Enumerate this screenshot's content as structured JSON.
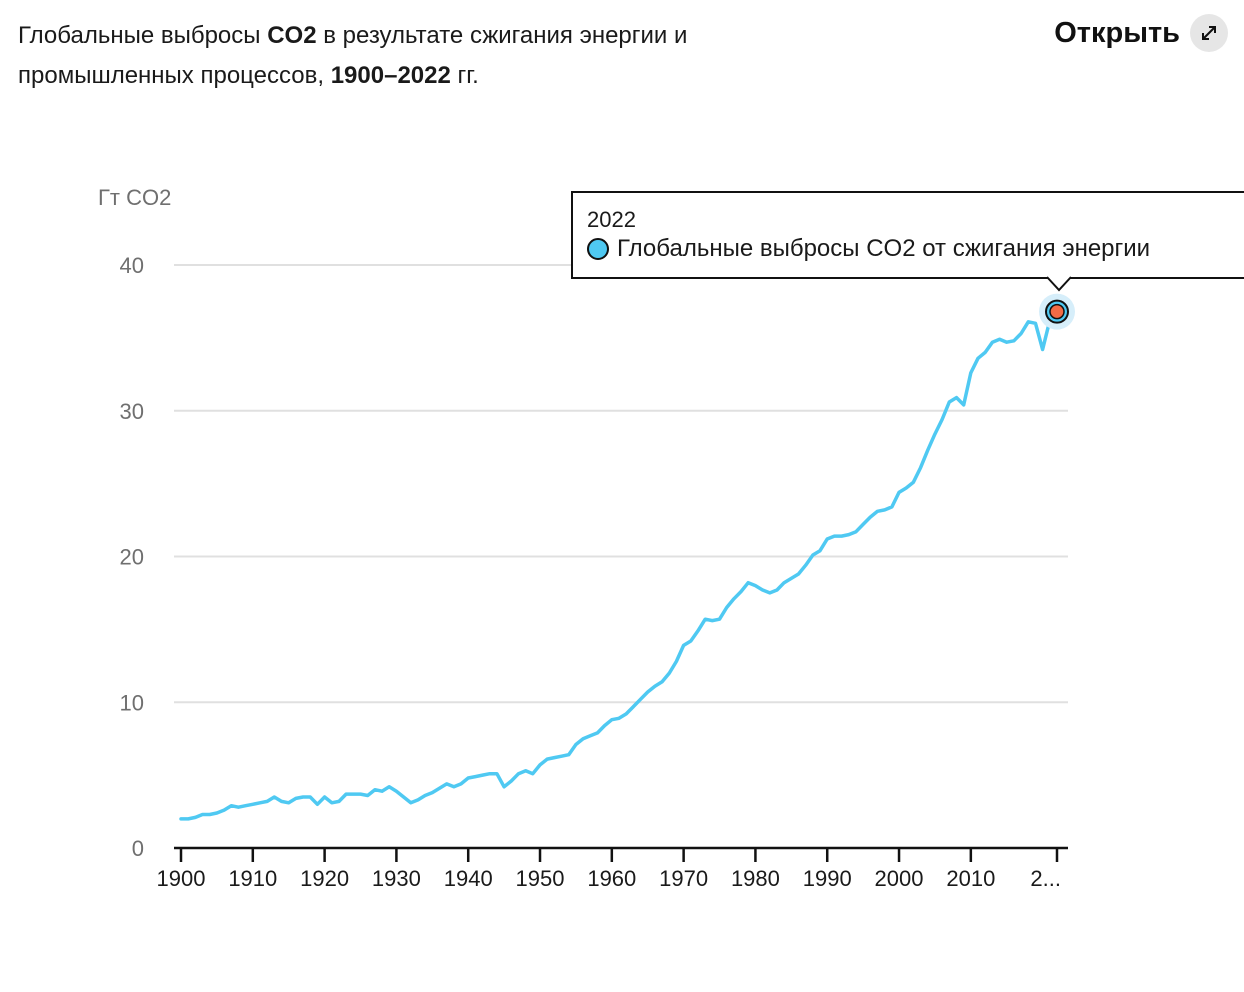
{
  "header": {
    "title_parts": [
      {
        "text": "Глобальные выбросы ",
        "bold": false
      },
      {
        "text": "CO2",
        "bold": true
      },
      {
        "text": " в результате сжигания энергии и промышленных процессов",
        "bold": false
      },
      {
        "text": ", ",
        "bold": false
      },
      {
        "text": "1900–2022",
        "bold": true
      },
      {
        "text": " гг.",
        "bold": false
      }
    ],
    "open_label": "Открыть",
    "open_icon": "expand-diagonal-arrows-icon"
  },
  "tooltip": {
    "year": "2022",
    "series_label": "Глобальные выбросы CO2 от сжигания энергии",
    "dot_color": "#4fc9f2"
  },
  "colors": {
    "line": "#4fc9f2",
    "highlight_point": "#f26b45",
    "highlight_halo": "#d6eefa",
    "grid": "#e0e0e0",
    "axis": "#111111"
  },
  "chart_data": {
    "type": "line",
    "title": "Глобальные выбросы CO2 в результате сжигания энергии и промышленных процессов, 1900–2022 гг.",
    "xlabel": "",
    "ylabel": "Гт CO2",
    "xlim": [
      1900,
      2022
    ],
    "ylim": [
      0,
      40
    ],
    "yticks": [
      0,
      10,
      20,
      30,
      40
    ],
    "xticks": [
      1900,
      1910,
      1920,
      1930,
      1940,
      1950,
      1960,
      1970,
      1980,
      1990,
      2000,
      2010,
      2022
    ],
    "xtick_labels": [
      "1900",
      "1910",
      "1920",
      "1930",
      "1940",
      "1950",
      "1960",
      "1970",
      "1980",
      "1990",
      "2000",
      "2010",
      "2..."
    ],
    "grid": true,
    "highlight": {
      "x": 2022,
      "y": 36.8
    },
    "series": [
      {
        "name": "Глобальные выбросы CO2 от сжигания энергии",
        "x": [
          1900,
          1901,
          1902,
          1903,
          1904,
          1905,
          1906,
          1907,
          1908,
          1909,
          1910,
          1911,
          1912,
          1913,
          1914,
          1915,
          1916,
          1917,
          1918,
          1919,
          1920,
          1921,
          1922,
          1923,
          1924,
          1925,
          1926,
          1927,
          1928,
          1929,
          1930,
          1931,
          1932,
          1933,
          1934,
          1935,
          1936,
          1937,
          1938,
          1939,
          1940,
          1941,
          1942,
          1943,
          1944,
          1945,
          1946,
          1947,
          1948,
          1949,
          1950,
          1951,
          1952,
          1953,
          1954,
          1955,
          1956,
          1957,
          1958,
          1959,
          1960,
          1961,
          1962,
          1963,
          1964,
          1965,
          1966,
          1967,
          1968,
          1969,
          1970,
          1971,
          1972,
          1973,
          1974,
          1975,
          1976,
          1977,
          1978,
          1979,
          1980,
          1981,
          1982,
          1983,
          1984,
          1985,
          1986,
          1987,
          1988,
          1989,
          1990,
          1991,
          1992,
          1993,
          1994,
          1995,
          1996,
          1997,
          1998,
          1999,
          2000,
          2001,
          2002,
          2003,
          2004,
          2005,
          2006,
          2007,
          2008,
          2009,
          2010,
          2011,
          2012,
          2013,
          2014,
          2015,
          2016,
          2017,
          2018,
          2019,
          2020,
          2021,
          2022
        ],
        "values": [
          2.0,
          2.0,
          2.1,
          2.3,
          2.3,
          2.4,
          2.6,
          2.9,
          2.8,
          2.9,
          3.0,
          3.1,
          3.2,
          3.5,
          3.2,
          3.1,
          3.4,
          3.5,
          3.5,
          3.0,
          3.5,
          3.1,
          3.2,
          3.7,
          3.7,
          3.7,
          3.6,
          4.0,
          3.9,
          4.2,
          3.9,
          3.5,
          3.1,
          3.3,
          3.6,
          3.8,
          4.1,
          4.4,
          4.2,
          4.4,
          4.8,
          4.9,
          5.0,
          5.1,
          5.1,
          4.2,
          4.6,
          5.1,
          5.3,
          5.1,
          5.7,
          6.1,
          6.2,
          6.3,
          6.4,
          7.1,
          7.5,
          7.7,
          7.9,
          8.4,
          8.8,
          8.9,
          9.2,
          9.7,
          10.2,
          10.7,
          11.1,
          11.4,
          12.0,
          12.8,
          13.9,
          14.2,
          14.9,
          15.7,
          15.6,
          15.7,
          16.5,
          17.1,
          17.6,
          18.2,
          18.0,
          17.7,
          17.5,
          17.7,
          18.2,
          18.5,
          18.8,
          19.4,
          20.1,
          20.4,
          21.2,
          21.4,
          21.4,
          21.5,
          21.7,
          22.2,
          22.7,
          23.1,
          23.2,
          23.4,
          24.4,
          24.7,
          25.1,
          26.1,
          27.3,
          28.4,
          29.4,
          30.6,
          30.9,
          30.4,
          32.6,
          33.6,
          34.0,
          34.7,
          34.9,
          34.7,
          34.8,
          35.3,
          36.1,
          36.0,
          34.2,
          36.2,
          36.8
        ]
      }
    ]
  }
}
